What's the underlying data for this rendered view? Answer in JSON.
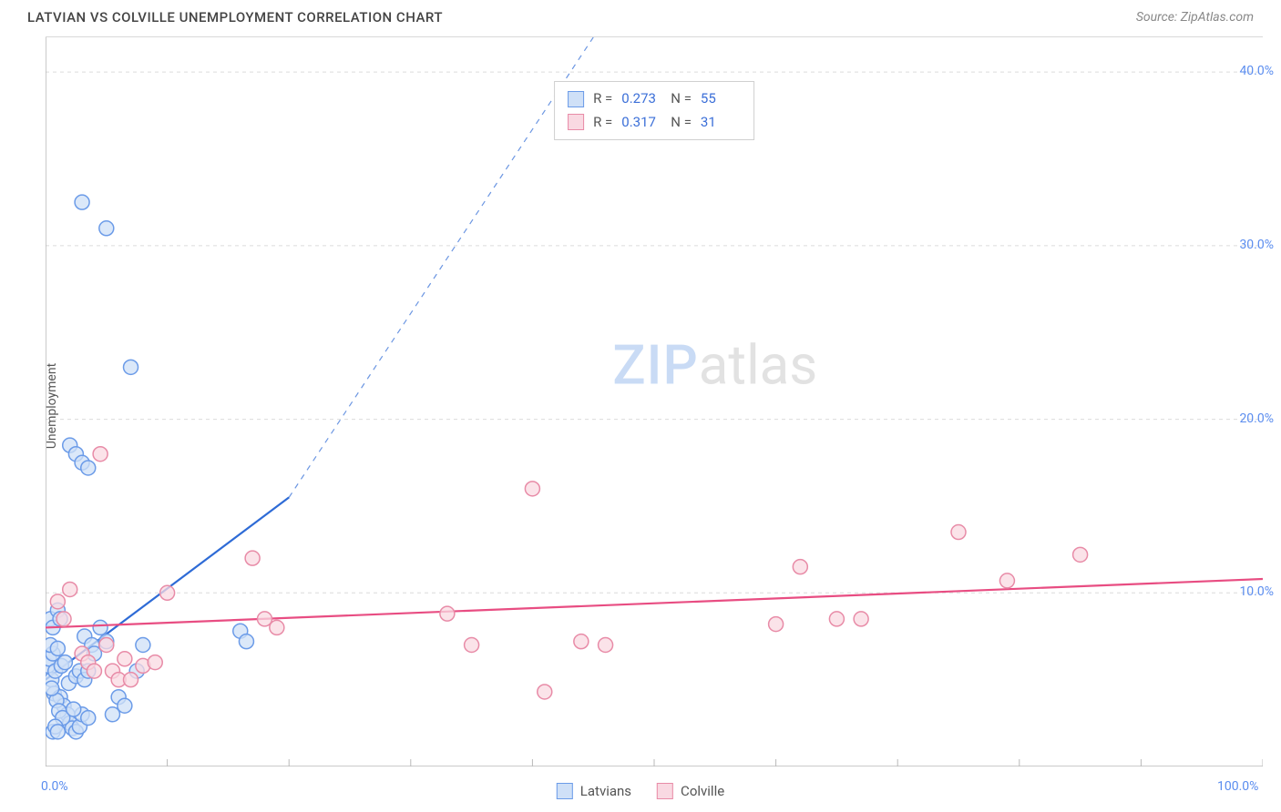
{
  "header": {
    "title": "LATVIAN VS COLVILLE UNEMPLOYMENT CORRELATION CHART",
    "source": "Source: ZipAtlas.com"
  },
  "ylabel": "Unemployment",
  "watermark": {
    "prefix": "ZIP",
    "suffix": "atlas"
  },
  "chart": {
    "type": "scatter",
    "background_color": "#ffffff",
    "grid_color": "#dcdcdc",
    "grid_dash": "4,4",
    "axis_color": "#b8b8b8",
    "tick_label_color": "#5b8def",
    "xlim": [
      0,
      100
    ],
    "ylim": [
      0,
      42
    ],
    "xtick_positions": [
      0,
      10,
      20,
      30,
      40,
      50,
      60,
      70,
      80,
      90,
      100
    ],
    "xtick_labels_shown": {
      "0": "0.0%",
      "100": "100.0%"
    },
    "ytick_positions": [
      10,
      20,
      30,
      40
    ],
    "ytick_labels": [
      "10.0%",
      "20.0%",
      "30.0%",
      "40.0%"
    ],
    "marker_radius": 8,
    "marker_stroke_width": 1.5,
    "line_width": 2.2,
    "series": [
      {
        "id": "latvians",
        "label": "Latvians",
        "fill_color": "#cfe0f7",
        "stroke_color": "#6b9be8",
        "line_color": "#2e6bd6",
        "r_value": "0.273",
        "n_value": "55",
        "regression": {
          "x1": 0,
          "y1": 5.0,
          "x2": 20,
          "y2": 15.5,
          "extend_dash_to": {
            "x": 45,
            "y": 42
          }
        },
        "points": [
          [
            0.2,
            5.8
          ],
          [
            0.3,
            6.2
          ],
          [
            0.5,
            5.0
          ],
          [
            0.6,
            6.5
          ],
          [
            0.4,
            7.0
          ],
          [
            0.8,
            5.5
          ],
          [
            1.0,
            6.8
          ],
          [
            0.7,
            4.2
          ],
          [
            1.2,
            4.0
          ],
          [
            1.5,
            3.5
          ],
          [
            1.8,
            3.0
          ],
          [
            2.0,
            2.5
          ],
          [
            1.3,
            5.8
          ],
          [
            1.6,
            6.0
          ],
          [
            2.2,
            2.2
          ],
          [
            2.5,
            2.0
          ],
          [
            2.8,
            2.3
          ],
          [
            3.0,
            3.0
          ],
          [
            3.5,
            2.8
          ],
          [
            0.9,
            3.8
          ],
          [
            1.1,
            3.2
          ],
          [
            1.4,
            2.8
          ],
          [
            3.2,
            7.5
          ],
          [
            3.8,
            7.0
          ],
          [
            4.0,
            6.5
          ],
          [
            4.5,
            8.0
          ],
          [
            5.0,
            7.2
          ],
          [
            0.5,
            4.5
          ],
          [
            2.0,
            18.5
          ],
          [
            2.5,
            18.0
          ],
          [
            3.0,
            17.5
          ],
          [
            3.5,
            17.2
          ],
          [
            3.0,
            32.5
          ],
          [
            5.0,
            31.0
          ],
          [
            7.0,
            23.0
          ],
          [
            8.0,
            7.0
          ],
          [
            7.5,
            5.5
          ],
          [
            6.0,
            4.0
          ],
          [
            6.5,
            3.5
          ],
          [
            5.5,
            3.0
          ],
          [
            2.3,
            3.3
          ],
          [
            1.9,
            4.8
          ],
          [
            0.6,
            2.0
          ],
          [
            0.8,
            2.3
          ],
          [
            1.0,
            2.0
          ],
          [
            16.0,
            7.8
          ],
          [
            16.5,
            7.2
          ],
          [
            0.4,
            8.5
          ],
          [
            0.6,
            8.0
          ],
          [
            1.0,
            9.0
          ],
          [
            1.2,
            8.5
          ],
          [
            2.5,
            5.2
          ],
          [
            2.8,
            5.5
          ],
          [
            3.2,
            5.0
          ],
          [
            3.5,
            5.5
          ]
        ]
      },
      {
        "id": "colville",
        "label": "Colville",
        "fill_color": "#f9d9e2",
        "stroke_color": "#e88ba7",
        "line_color": "#e84d82",
        "r_value": "0.317",
        "n_value": "31",
        "regression": {
          "x1": 0,
          "y1": 8.0,
          "x2": 100,
          "y2": 10.8
        },
        "points": [
          [
            1.0,
            9.5
          ],
          [
            1.5,
            8.5
          ],
          [
            2.0,
            10.2
          ],
          [
            3.0,
            6.5
          ],
          [
            3.5,
            6.0
          ],
          [
            4.0,
            5.5
          ],
          [
            5.0,
            7.0
          ],
          [
            5.5,
            5.5
          ],
          [
            6.0,
            5.0
          ],
          [
            6.5,
            6.2
          ],
          [
            4.5,
            18.0
          ],
          [
            8.0,
            5.8
          ],
          [
            10.0,
            10.0
          ],
          [
            18.0,
            8.5
          ],
          [
            19.0,
            8.0
          ],
          [
            17.0,
            12.0
          ],
          [
            33.0,
            8.8
          ],
          [
            35.0,
            7.0
          ],
          [
            40.0,
            16.0
          ],
          [
            41.0,
            4.3
          ],
          [
            44.0,
            7.2
          ],
          [
            46.0,
            7.0
          ],
          [
            60.0,
            8.2
          ],
          [
            62.0,
            11.5
          ],
          [
            65.0,
            8.5
          ],
          [
            67.0,
            8.5
          ],
          [
            75.0,
            13.5
          ],
          [
            79.0,
            10.7
          ],
          [
            85.0,
            12.2
          ],
          [
            7.0,
            5.0
          ],
          [
            9.0,
            6.0
          ]
        ]
      }
    ]
  },
  "stats_box": {
    "r_label": "R =",
    "n_label": "N ="
  },
  "legend_labels": {
    "latvians": "Latvians",
    "colville": "Colville"
  }
}
